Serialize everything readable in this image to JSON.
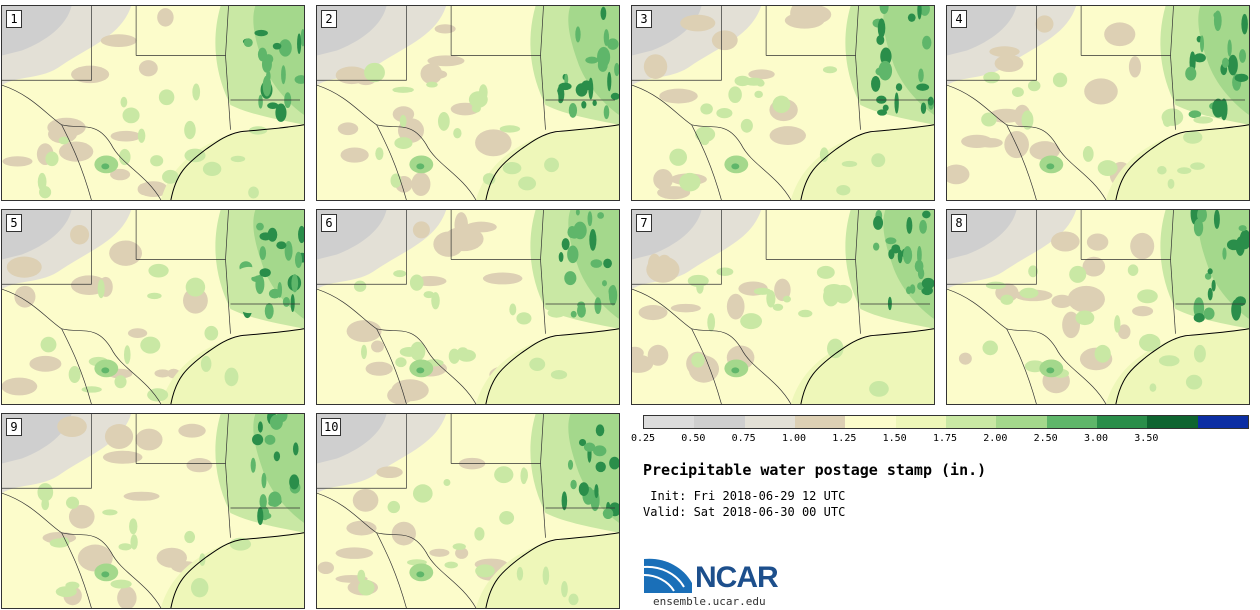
{
  "stamps": [
    {
      "label": "1",
      "wetness": 0.85
    },
    {
      "label": "2",
      "wetness": 0.95
    },
    {
      "label": "3",
      "wetness": 1.0
    },
    {
      "label": "4",
      "wetness": 0.9
    },
    {
      "label": "5",
      "wetness": 0.95
    },
    {
      "label": "6",
      "wetness": 0.9
    },
    {
      "label": "7",
      "wetness": 0.95
    },
    {
      "label": "8",
      "wetness": 0.8
    },
    {
      "label": "9",
      "wetness": 0.85
    },
    {
      "label": "10",
      "wetness": 0.8
    }
  ],
  "colorbar": {
    "ticks": [
      "0.25",
      "0.50",
      "0.75",
      "1.00",
      "1.25",
      "1.50",
      "1.75",
      "2.00",
      "2.50",
      "3.00",
      "3.50"
    ],
    "colors": [
      "#dcdcdc",
      "#cfcfcf",
      "#e3e0d6",
      "#ddd0b4",
      "#fcfccb",
      "#eef7b9",
      "#c9e8a4",
      "#a4d88c",
      "#5fb66a",
      "#2a8e4a",
      "#0e6430",
      "#0c2ea3"
    ]
  },
  "title": "Precipitable water postage stamp (in.)",
  "init": " Init: Fri 2018-06-29 12 UTC",
  "valid": "Valid: Sat 2018-06-30 00 UTC",
  "logo": {
    "text": "NCAR",
    "site": "ensemble.ucar.edu",
    "color": "#1d4f8c"
  }
}
